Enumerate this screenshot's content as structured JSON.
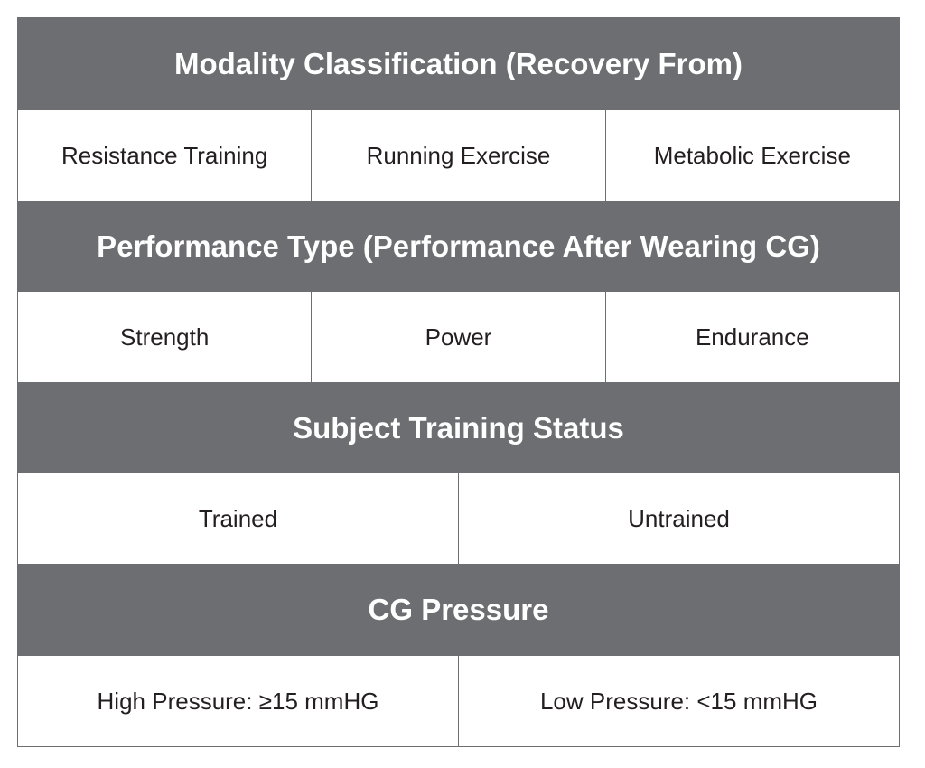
{
  "sections": [
    {
      "header": "Modality Classification (Recovery From)",
      "items": [
        "Resistance Training",
        "Running Exercise",
        "Metabolic Exercise"
      ]
    },
    {
      "header": "Performance Type (Performance After Wearing CG)",
      "items": [
        "Strength",
        "Power",
        "Endurance"
      ]
    },
    {
      "header": "Subject Training Status",
      "items": [
        "Trained",
        "Untrained"
      ]
    },
    {
      "header": "CG Pressure",
      "items": [
        "High Pressure:  ≥15 mmHG",
        "Low Pressure: <15 mmHG"
      ]
    }
  ],
  "colors": {
    "header_bg": "#6d6e71",
    "header_text": "#ffffff",
    "cell_text": "#231f20",
    "border": "#6d6e71"
  }
}
